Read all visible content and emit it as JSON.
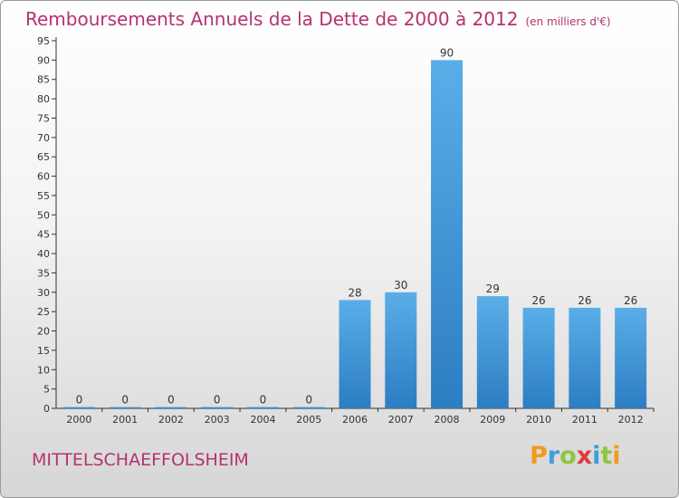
{
  "title": "Remboursements Annuels de la Dette de 2000 à 2012",
  "unit": "(en milliers d'€)",
  "commune": "MITTELSCHAEFFOLSHEIM",
  "logo": {
    "letters": [
      "P",
      "r",
      "o",
      "x",
      "i",
      "t",
      "i"
    ],
    "colors": [
      "#f39a1c",
      "#3f9fd8",
      "#8cc63f",
      "#e03a3e",
      "#3f9fd8",
      "#8cc63f",
      "#f39a1c"
    ]
  },
  "colors": {
    "bar": "#4d9fe0",
    "barDark": "#2f7fc4",
    "title": "#b5326e"
  },
  "chart_data": {
    "type": "bar",
    "categories": [
      "2000",
      "2001",
      "2002",
      "2003",
      "2004",
      "2005",
      "2006",
      "2007",
      "2008",
      "2009",
      "2010",
      "2011",
      "2012"
    ],
    "values": [
      0,
      0,
      0,
      0,
      0,
      0,
      28,
      30,
      90,
      29,
      26,
      26,
      26
    ],
    "ylim": [
      0,
      95
    ],
    "yticks": [
      0,
      5,
      10,
      15,
      20,
      25,
      30,
      35,
      40,
      45,
      50,
      55,
      60,
      65,
      70,
      75,
      80,
      85,
      90,
      95
    ],
    "grid": false,
    "legend": "none"
  }
}
